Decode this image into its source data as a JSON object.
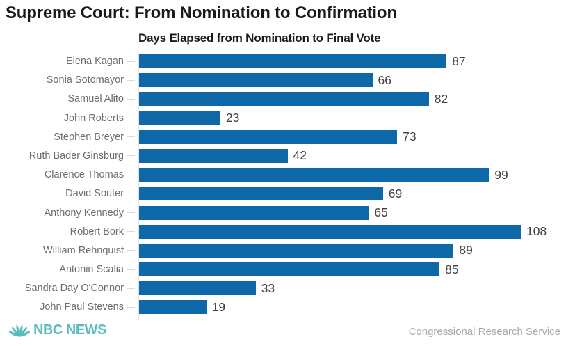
{
  "chart_data": {
    "type": "bar",
    "orientation": "horizontal",
    "title": "Supreme Court: From Nomination to Confirmation",
    "subtitle": "Days Elapsed from Nomination to Final Vote",
    "categories": [
      "Elena Kagan",
      "Sonia Sotomayor",
      "Samuel Alito",
      "John Roberts",
      "Stephen Breyer",
      "Ruth Bader Ginsburg",
      "Clarence Thomas",
      "David Souter",
      "Anthony Kennedy",
      "Robert Bork",
      "William Rehnquist",
      "Antonin Scalia",
      "Sandra Day O'Connor",
      "John Paul Stevens"
    ],
    "values": [
      87,
      66,
      82,
      23,
      73,
      42,
      99,
      69,
      65,
      108,
      89,
      85,
      33,
      19
    ],
    "xlim": [
      0,
      108
    ],
    "bar_color": "#0f69a8",
    "value_labels_shown": true,
    "grid": false,
    "legend": false
  },
  "footer": {
    "brand": "NBC NEWS",
    "brand_color": "#5bbcbe",
    "source": "Congressional Research Service"
  }
}
